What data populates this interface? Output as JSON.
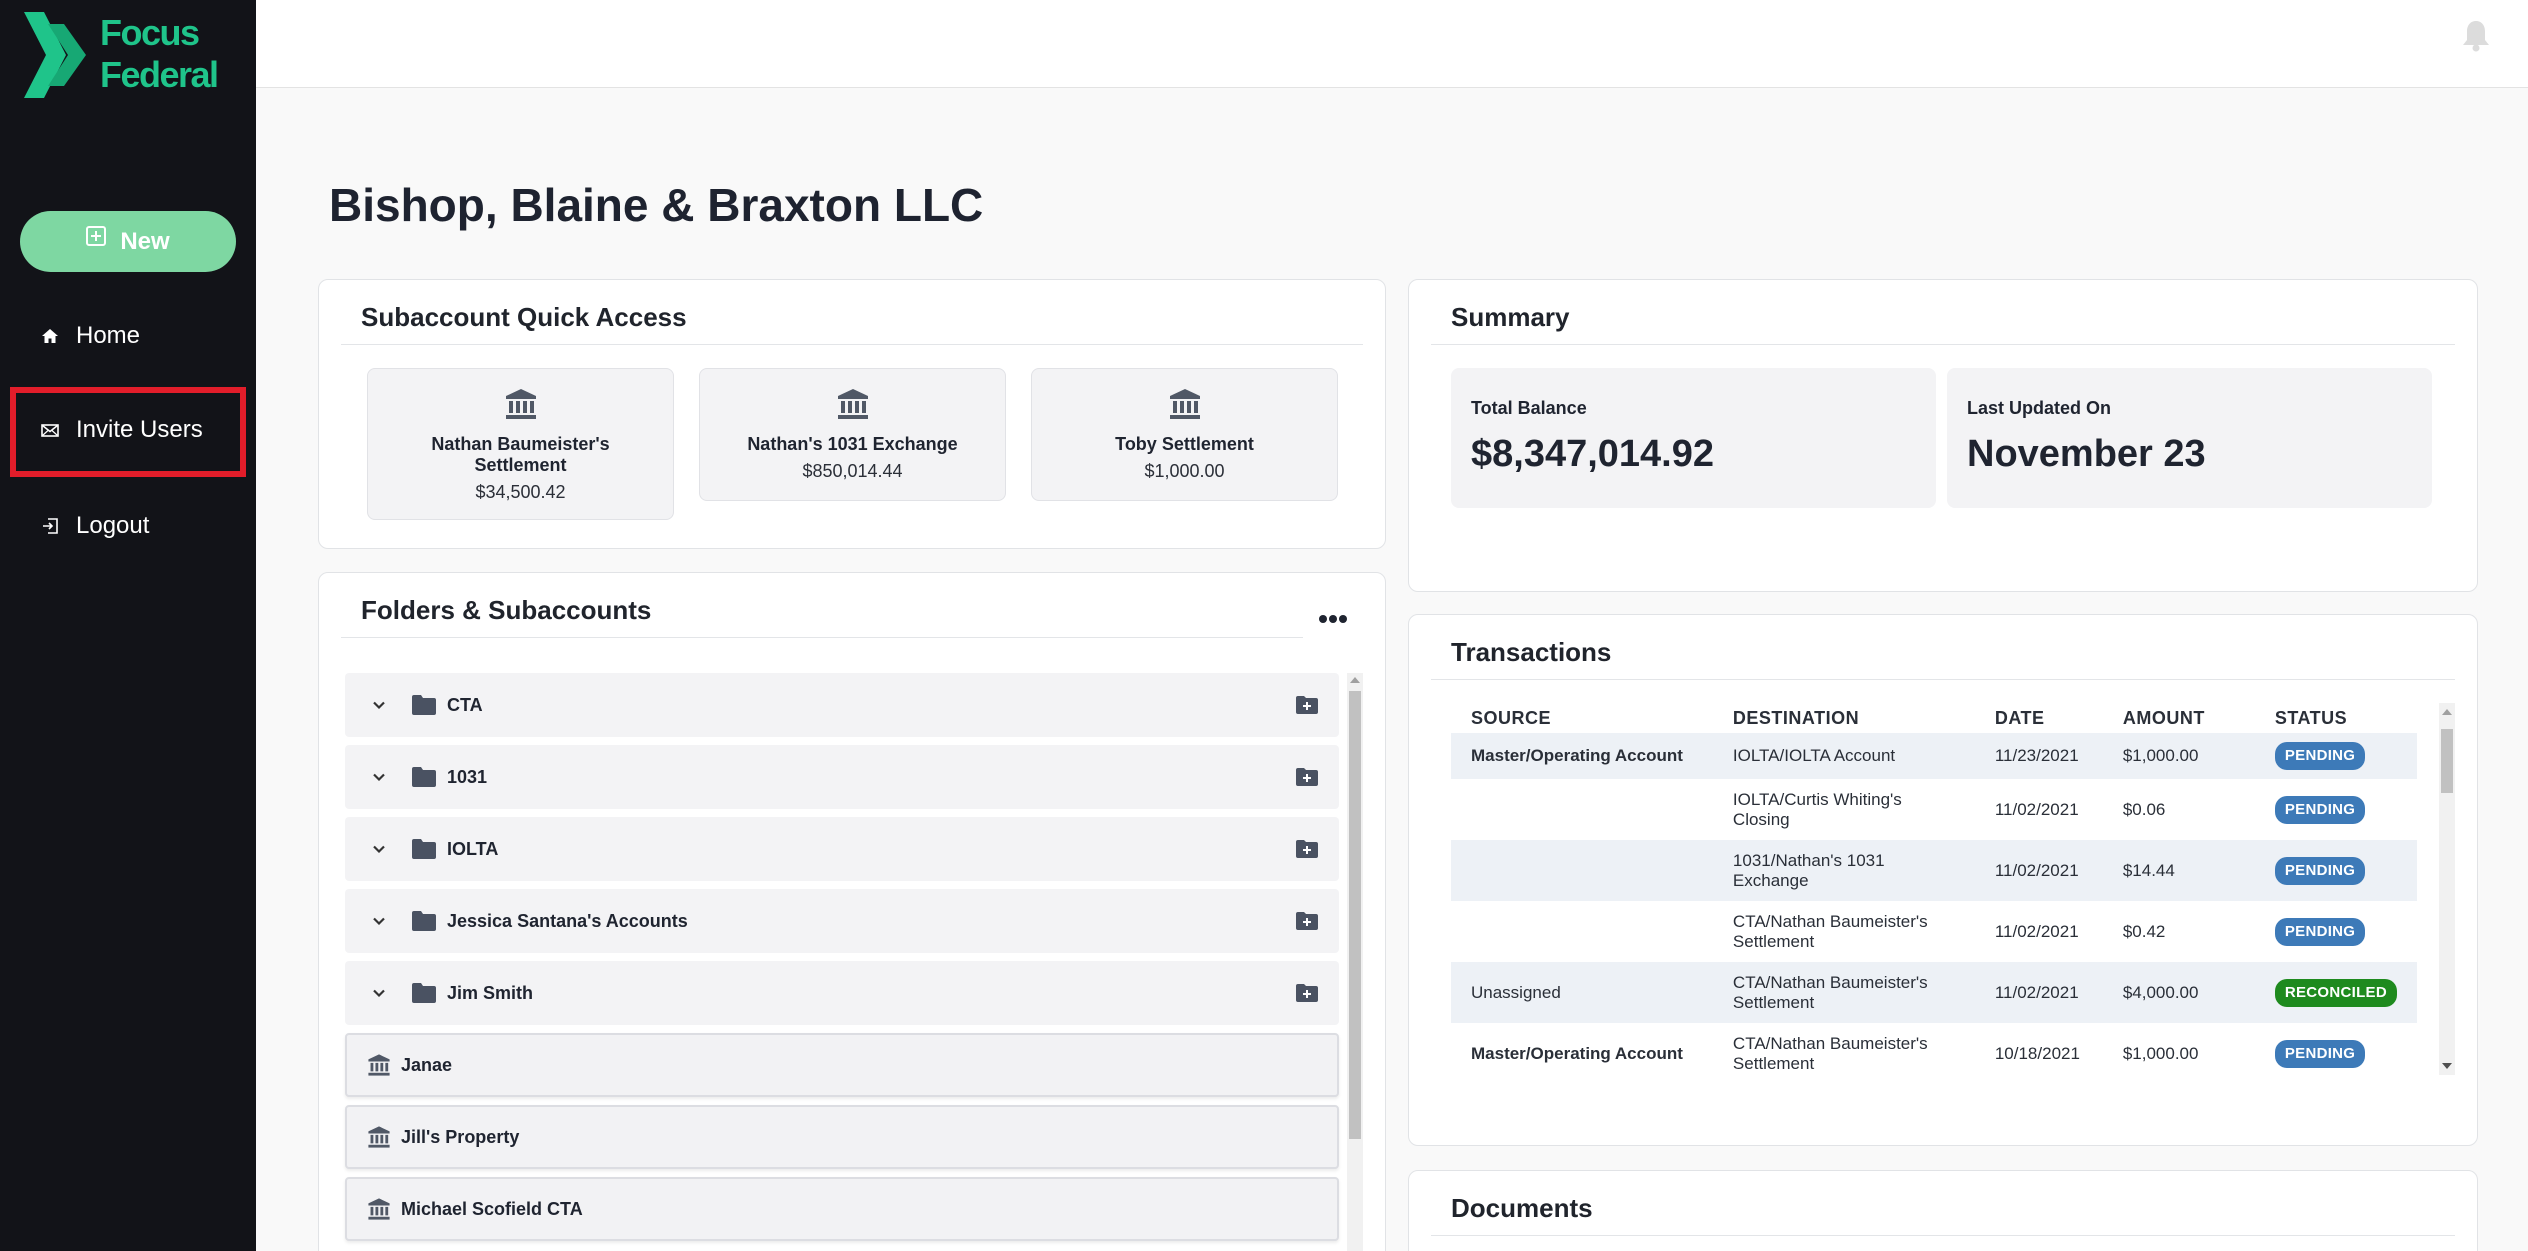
{
  "brand": {
    "line1": "Focus",
    "line2": "Federal",
    "color": "#1fc48a"
  },
  "sidebar": {
    "new_label": "New",
    "items": [
      {
        "label": "Home",
        "icon": "home-icon"
      },
      {
        "label": "Invite Users",
        "icon": "envelope-icon"
      },
      {
        "label": "Logout",
        "icon": "logout-icon"
      }
    ]
  },
  "page": {
    "title": "Bishop, Blaine & Braxton LLC"
  },
  "quick_access": {
    "title": "Subaccount Quick Access",
    "tiles": [
      {
        "name": "Nathan Baumeister's Settlement",
        "amount": "$34,500.42"
      },
      {
        "name": "Nathan's 1031 Exchange",
        "amount": "$850,014.44"
      },
      {
        "name": "Toby Settlement",
        "amount": "$1,000.00"
      }
    ]
  },
  "folders": {
    "title": "Folders & Subaccounts",
    "folder_items": [
      "CTA",
      "1031",
      "IOLTA",
      "Jessica Santana's Accounts",
      "Jim Smith"
    ],
    "subaccounts": [
      "Janae",
      "Jill's Property",
      "Michael Scofield CTA"
    ]
  },
  "summary": {
    "title": "Summary",
    "total_label": "Total Balance",
    "total_value": "$8,347,014.92",
    "updated_label": "Last Updated On",
    "updated_value": "November 23"
  },
  "transactions": {
    "title": "Transactions",
    "headers": [
      "SOURCE",
      "DESTINATION",
      "DATE",
      "AMOUNT",
      "STATUS"
    ],
    "rows": [
      {
        "source": "Master/Operating Account",
        "destination": "IOLTA/IOLTA Account",
        "date": "11/23/2021",
        "amount": "$1,000.00",
        "status": "PENDING"
      },
      {
        "source": "",
        "destination": "IOLTA/Curtis Whiting's Closing",
        "date": "11/02/2021",
        "amount": "$0.06",
        "status": "PENDING"
      },
      {
        "source": "",
        "destination": "1031/Nathan's 1031 Exchange",
        "date": "11/02/2021",
        "amount": "$14.44",
        "status": "PENDING"
      },
      {
        "source": "",
        "destination": "CTA/Nathan Baumeister's Settlement",
        "date": "11/02/2021",
        "amount": "$0.42",
        "status": "PENDING"
      },
      {
        "source": "Unassigned",
        "destination": "CTA/Nathan Baumeister's Settlement",
        "date": "11/02/2021",
        "amount": "$4,000.00",
        "status": "RECONCILED"
      },
      {
        "source": "Master/Operating Account",
        "destination": "CTA/Nathan Baumeister's Settlement",
        "date": "10/18/2021",
        "amount": "$1,000.00",
        "status": "PENDING"
      }
    ],
    "status_colors": {
      "PENDING": "#3d7ab8",
      "RECONCILED": "#1e8a1e"
    }
  },
  "documents": {
    "title": "Documents"
  }
}
